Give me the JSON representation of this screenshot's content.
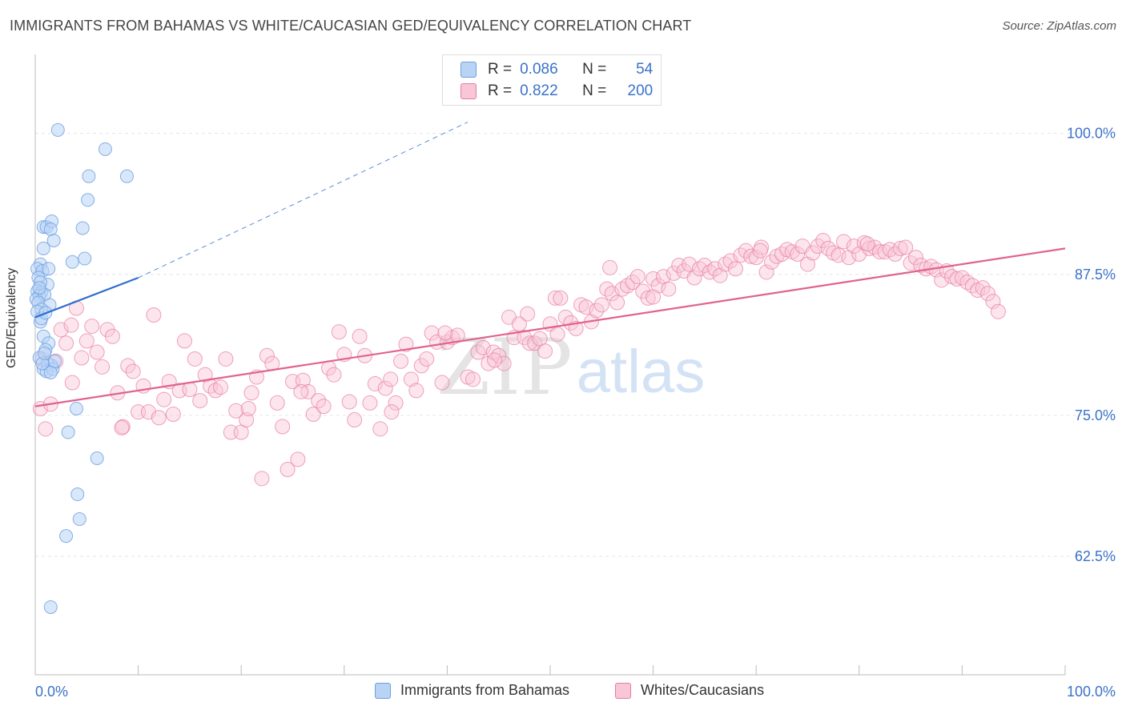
{
  "title": "IMMIGRANTS FROM BAHAMAS VS WHITE/CAUCASIAN GED/EQUIVALENCY CORRELATION CHART",
  "source": "Source: ZipAtlas.com",
  "watermark": {
    "zip": "ZIP",
    "atlas": "atlas"
  },
  "legend": {
    "r_label": "R =",
    "n_label": "N =",
    "series": [
      {
        "name": "Immigrants from Bahamas",
        "r": "0.086",
        "n": "54",
        "color": "#6a9fe0",
        "fill": "#b9d3f5"
      },
      {
        "name": "Whites/Caucasians",
        "r": "0.822",
        "n": "200",
        "color": "#e87ba0",
        "fill": "#f8c6d6"
      }
    ]
  },
  "colors": {
    "blue_line": "#2f6fd0",
    "pink_line": "#e0628f",
    "axis_text": "#3a72c9",
    "grid": "#e6e6e6"
  },
  "chart_data": {
    "type": "scatter",
    "title": "IMMIGRANTS FROM BAHAMAS VS WHITE/CAUCASIAN GED/EQUIVALENCY CORRELATION CHART",
    "xlabel": "",
    "ylabel": "GED/Equivalency",
    "xlim": [
      0,
      100
    ],
    "ylim": [
      52,
      107
    ],
    "x_tick_labels": [
      "0.0%",
      "100.0%"
    ],
    "y_ticks": [
      62.5,
      75.0,
      87.5,
      100.0
    ],
    "y_tick_labels": [
      "62.5%",
      "75.0%",
      "87.5%",
      "100.0%"
    ],
    "grid": true,
    "legend_position": "top-center",
    "series": [
      {
        "name": "Immigrants from Bahamas",
        "trend": {
          "x0": 0,
          "y0": 83.7,
          "x1": 10,
          "y1": 87.2,
          "dashed_to_x": 42,
          "dashed_to_y": 101
        },
        "points": [
          [
            2.2,
            100.3
          ],
          [
            6.8,
            98.6
          ],
          [
            8.9,
            96.2
          ],
          [
            5.2,
            96.2
          ],
          [
            5.1,
            94.1
          ],
          [
            0.8,
            91.7
          ],
          [
            1.1,
            91.7
          ],
          [
            1.6,
            92.2
          ],
          [
            1.5,
            91.5
          ],
          [
            4.6,
            91.6
          ],
          [
            1.8,
            90.5
          ],
          [
            0.8,
            89.8
          ],
          [
            3.6,
            88.6
          ],
          [
            4.8,
            88.9
          ],
          [
            0.5,
            88.4
          ],
          [
            0.2,
            88.0
          ],
          [
            0.7,
            87.8
          ],
          [
            0.3,
            87.2
          ],
          [
            1.2,
            86.6
          ],
          [
            0.5,
            86.8
          ],
          [
            0.2,
            86.0
          ],
          [
            0.6,
            85.9
          ],
          [
            0.4,
            85.6
          ],
          [
            0.1,
            85.3
          ],
          [
            0.9,
            85.7
          ],
          [
            0.3,
            85.0
          ],
          [
            1.4,
            84.8
          ],
          [
            0.6,
            84.4
          ],
          [
            0.2,
            84.2
          ],
          [
            0.5,
            83.3
          ],
          [
            0.8,
            82.0
          ],
          [
            1.3,
            81.4
          ],
          [
            1.0,
            80.8
          ],
          [
            0.4,
            80.1
          ],
          [
            1.6,
            79.4
          ],
          [
            0.8,
            79.1
          ],
          [
            1.2,
            79.6
          ],
          [
            1.1,
            78.9
          ],
          [
            1.7,
            79.1
          ],
          [
            0.7,
            79.6
          ],
          [
            1.5,
            78.8
          ],
          [
            4.0,
            75.6
          ],
          [
            3.2,
            73.5
          ],
          [
            6.0,
            71.2
          ],
          [
            4.1,
            68.0
          ],
          [
            4.3,
            65.8
          ],
          [
            3.0,
            64.3
          ],
          [
            1.5,
            58.0
          ],
          [
            0.9,
            80.5
          ],
          [
            0.6,
            83.6
          ],
          [
            1.9,
            79.8
          ],
          [
            1.0,
            84.1
          ],
          [
            0.4,
            86.3
          ],
          [
            1.3,
            88.0
          ]
        ]
      },
      {
        "name": "Whites/Caucasians",
        "trend": {
          "x0": 0,
          "y0": 75.8,
          "x1": 100,
          "y1": 89.8
        },
        "points": [
          [
            0.5,
            75.6
          ],
          [
            1.0,
            73.8
          ],
          [
            1.5,
            76.0
          ],
          [
            2.0,
            79.8
          ],
          [
            2.5,
            82.6
          ],
          [
            3.0,
            81.4
          ],
          [
            3.5,
            83.0
          ],
          [
            4.0,
            84.5
          ],
          [
            4.5,
            80.1
          ],
          [
            5.0,
            81.6
          ],
          [
            5.5,
            82.9
          ],
          [
            6.0,
            80.6
          ],
          [
            6.5,
            79.3
          ],
          [
            7.0,
            82.6
          ],
          [
            7.5,
            82.0
          ],
          [
            8.0,
            77.0
          ],
          [
            8.5,
            74.0
          ],
          [
            9.0,
            79.4
          ],
          [
            9.5,
            78.9
          ],
          [
            10.0,
            75.3
          ],
          [
            10.5,
            77.6
          ],
          [
            11.0,
            75.3
          ],
          [
            11.5,
            83.9
          ],
          [
            12.0,
            74.8
          ],
          [
            12.5,
            76.4
          ],
          [
            13.0,
            78.0
          ],
          [
            14.0,
            77.2
          ],
          [
            14.5,
            81.6
          ],
          [
            15.0,
            77.3
          ],
          [
            15.5,
            80.0
          ],
          [
            16.0,
            76.3
          ],
          [
            16.5,
            78.6
          ],
          [
            17.0,
            77.6
          ],
          [
            17.5,
            77.2
          ],
          [
            18.0,
            77.5
          ],
          [
            18.5,
            80.0
          ],
          [
            19.0,
            73.5
          ],
          [
            19.5,
            75.4
          ],
          [
            20.0,
            73.5
          ],
          [
            20.5,
            74.6
          ],
          [
            21.0,
            77.0
          ],
          [
            21.5,
            78.4
          ],
          [
            22.0,
            69.4
          ],
          [
            22.5,
            80.3
          ],
          [
            23.0,
            79.6
          ],
          [
            23.5,
            76.1
          ],
          [
            24.0,
            74.0
          ],
          [
            24.5,
            70.2
          ],
          [
            25.0,
            78.0
          ],
          [
            25.5,
            71.1
          ],
          [
            26.0,
            78.1
          ],
          [
            26.5,
            77.1
          ],
          [
            27.0,
            75.1
          ],
          [
            27.5,
            76.3
          ],
          [
            28.0,
            75.8
          ],
          [
            28.5,
            79.2
          ],
          [
            29.0,
            78.6
          ],
          [
            29.5,
            82.4
          ],
          [
            30.0,
            80.4
          ],
          [
            30.5,
            76.2
          ],
          [
            31.0,
            74.6
          ],
          [
            31.5,
            82.0
          ],
          [
            32.0,
            80.3
          ],
          [
            32.5,
            76.1
          ],
          [
            33.0,
            77.8
          ],
          [
            33.5,
            73.8
          ],
          [
            34.0,
            77.4
          ],
          [
            34.5,
            78.2
          ],
          [
            35.0,
            76.1
          ],
          [
            35.5,
            79.8
          ],
          [
            36.0,
            81.3
          ],
          [
            36.5,
            78.2
          ],
          [
            37.0,
            77.2
          ],
          [
            37.5,
            79.4
          ],
          [
            38.0,
            80.0
          ],
          [
            38.5,
            82.3
          ],
          [
            39.0,
            81.5
          ],
          [
            39.5,
            77.9
          ],
          [
            40.0,
            81.5
          ],
          [
            40.5,
            81.9
          ],
          [
            41.0,
            82.1
          ],
          [
            42.0,
            78.4
          ],
          [
            42.5,
            78.2
          ],
          [
            43.0,
            80.6
          ],
          [
            43.5,
            81.0
          ],
          [
            44.0,
            79.6
          ],
          [
            44.5,
            80.6
          ],
          [
            45.0,
            80.3
          ],
          [
            45.5,
            79.6
          ],
          [
            46.0,
            83.7
          ],
          [
            46.5,
            81.9
          ],
          [
            47.0,
            83.1
          ],
          [
            47.5,
            81.9
          ],
          [
            48.0,
            81.4
          ],
          [
            48.5,
            81.4
          ],
          [
            49.0,
            81.8
          ],
          [
            49.5,
            80.7
          ],
          [
            50.0,
            83.1
          ],
          [
            50.5,
            85.4
          ],
          [
            51.0,
            85.4
          ],
          [
            51.5,
            83.7
          ],
          [
            52.0,
            83.2
          ],
          [
            52.5,
            82.7
          ],
          [
            53.0,
            84.8
          ],
          [
            53.5,
            84.6
          ],
          [
            54.0,
            83.3
          ],
          [
            54.5,
            84.3
          ],
          [
            55.0,
            84.8
          ],
          [
            55.5,
            86.2
          ],
          [
            56.0,
            85.8
          ],
          [
            56.5,
            85.0
          ],
          [
            57.0,
            86.2
          ],
          [
            57.5,
            86.5
          ],
          [
            58.0,
            86.8
          ],
          [
            58.5,
            87.3
          ],
          [
            59.0,
            86.0
          ],
          [
            59.5,
            85.4
          ],
          [
            60.0,
            87.1
          ],
          [
            60.5,
            86.5
          ],
          [
            61.0,
            87.3
          ],
          [
            61.5,
            86.2
          ],
          [
            62.0,
            87.6
          ],
          [
            62.5,
            88.3
          ],
          [
            63.0,
            87.8
          ],
          [
            63.5,
            88.4
          ],
          [
            64.0,
            87.2
          ],
          [
            64.5,
            88.0
          ],
          [
            65.0,
            88.3
          ],
          [
            65.5,
            87.7
          ],
          [
            66.0,
            88.0
          ],
          [
            66.5,
            87.4
          ],
          [
            67.0,
            88.4
          ],
          [
            67.5,
            88.7
          ],
          [
            68.0,
            88.0
          ],
          [
            68.5,
            89.2
          ],
          [
            69.0,
            89.6
          ],
          [
            69.5,
            89.1
          ],
          [
            70.0,
            89.0
          ],
          [
            70.5,
            89.9
          ],
          [
            71.0,
            87.7
          ],
          [
            71.5,
            88.6
          ],
          [
            72.0,
            89.1
          ],
          [
            72.5,
            89.3
          ],
          [
            73.0,
            89.7
          ],
          [
            73.5,
            89.5
          ],
          [
            74.0,
            89.3
          ],
          [
            74.5,
            90.0
          ],
          [
            75.0,
            88.4
          ],
          [
            75.5,
            89.4
          ],
          [
            76.0,
            90.0
          ],
          [
            76.5,
            90.5
          ],
          [
            77.0,
            89.8
          ],
          [
            77.5,
            89.4
          ],
          [
            78.0,
            89.2
          ],
          [
            78.5,
            90.4
          ],
          [
            79.0,
            89.0
          ],
          [
            79.5,
            90.0
          ],
          [
            80.0,
            89.3
          ],
          [
            80.5,
            90.3
          ],
          [
            81.0,
            89.8
          ],
          [
            81.5,
            89.9
          ],
          [
            82.0,
            89.5
          ],
          [
            82.5,
            89.5
          ],
          [
            83.0,
            89.7
          ],
          [
            83.5,
            89.3
          ],
          [
            84.0,
            89.8
          ],
          [
            84.5,
            89.9
          ],
          [
            85.0,
            88.5
          ],
          [
            85.5,
            89.0
          ],
          [
            86.0,
            88.3
          ],
          [
            86.5,
            88.0
          ],
          [
            87.0,
            88.2
          ],
          [
            87.5,
            87.9
          ],
          [
            88.0,
            87.0
          ],
          [
            88.5,
            87.8
          ],
          [
            89.0,
            87.3
          ],
          [
            89.5,
            87.1
          ],
          [
            90.0,
            87.2
          ],
          [
            90.5,
            86.8
          ],
          [
            91.0,
            86.5
          ],
          [
            91.5,
            86.1
          ],
          [
            92.0,
            86.3
          ],
          [
            92.5,
            85.8
          ],
          [
            93.0,
            85.1
          ],
          [
            93.5,
            84.2
          ],
          [
            0.7,
            80.0
          ],
          [
            3.6,
            77.9
          ],
          [
            13.4,
            75.1
          ],
          [
            39.8,
            82.3
          ],
          [
            25.8,
            77.1
          ],
          [
            60.0,
            85.5
          ],
          [
            47.8,
            84.0
          ],
          [
            50.7,
            82.2
          ],
          [
            55.8,
            88.1
          ],
          [
            70.4,
            89.6
          ],
          [
            80.8,
            90.2
          ],
          [
            8.4,
            73.9
          ],
          [
            20.7,
            75.6
          ],
          [
            34.6,
            75.3
          ],
          [
            44.6,
            79.9
          ]
        ]
      }
    ]
  }
}
